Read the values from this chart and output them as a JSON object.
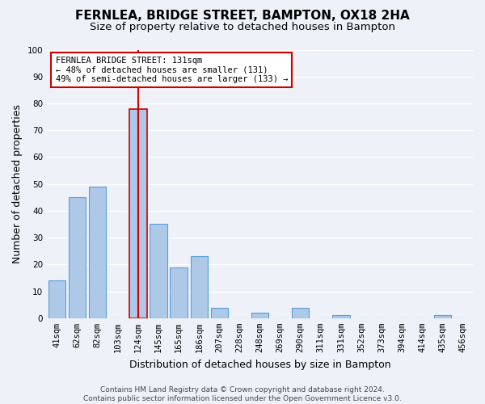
{
  "title": "FERNLEA, BRIDGE STREET, BAMPTON, OX18 2HA",
  "subtitle": "Size of property relative to detached houses in Bampton",
  "xlabel": "Distribution of detached houses by size in Bampton",
  "ylabel": "Number of detached properties",
  "bin_labels": [
    "41sqm",
    "62sqm",
    "82sqm",
    "103sqm",
    "124sqm",
    "145sqm",
    "165sqm",
    "186sqm",
    "207sqm",
    "228sqm",
    "248sqm",
    "269sqm",
    "290sqm",
    "311sqm",
    "331sqm",
    "352sqm",
    "373sqm",
    "394sqm",
    "414sqm",
    "435sqm",
    "456sqm"
  ],
  "bar_heights": [
    14,
    45,
    49,
    0,
    78,
    35,
    19,
    23,
    4,
    0,
    2,
    0,
    4,
    0,
    1,
    0,
    0,
    0,
    0,
    1,
    0
  ],
  "bar_color": "#aec8e8",
  "bar_edge_color": "#5a9fd4",
  "highlight_bar_index": 4,
  "highlight_bar_edge_color": "#cc0000",
  "vline_x": 4,
  "vline_color": "#cc0000",
  "ylim": [
    0,
    100
  ],
  "yticks": [
    0,
    10,
    20,
    30,
    40,
    50,
    60,
    70,
    80,
    90,
    100
  ],
  "annotation_title": "FERNLEA BRIDGE STREET: 131sqm",
  "annotation_line1": "← 48% of detached houses are smaller (131)",
  "annotation_line2": "49% of semi-detached houses are larger (133) →",
  "annotation_box_color": "#ffffff",
  "annotation_box_edge": "#cc0000",
  "footer_line1": "Contains HM Land Registry data © Crown copyright and database right 2024.",
  "footer_line2": "Contains public sector information licensed under the Open Government Licence v3.0.",
  "background_color": "#eef2f8",
  "grid_color": "#ffffff",
  "title_fontsize": 11,
  "subtitle_fontsize": 9.5,
  "axis_label_fontsize": 9,
  "tick_fontsize": 7.5,
  "footer_fontsize": 6.5
}
